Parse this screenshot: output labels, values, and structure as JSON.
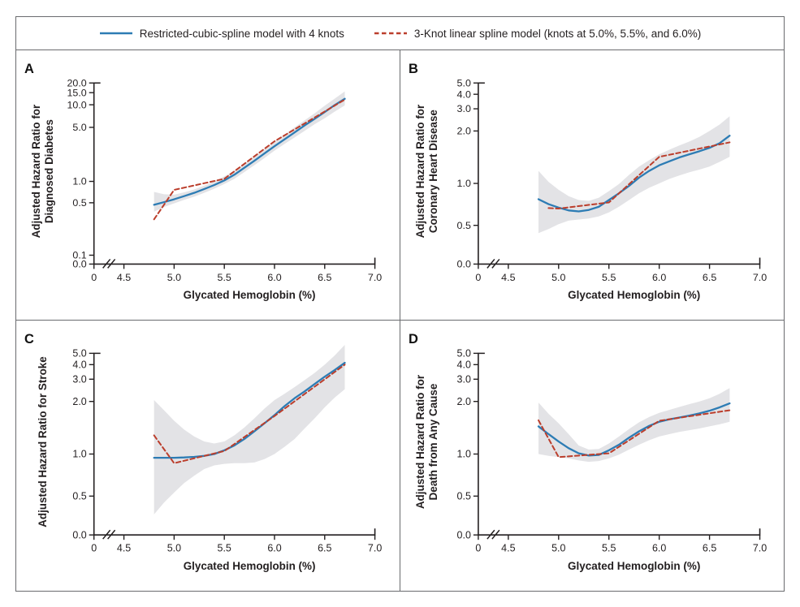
{
  "figure": {
    "legend": [
      {
        "label": "Restricted-cubic-spline model with 4 knots",
        "color": "#2d7cb4",
        "style": "solid"
      },
      {
        "label": "3-Knot linear spline model (knots at 5.0%, 5.5%, and 6.0%)",
        "color": "#bb3e2c",
        "style": "dashed"
      }
    ],
    "colors": {
      "curve_blue": "#2d7cb4",
      "curve_red": "#bb3e2c",
      "band_gray": "#e3e3e6",
      "axis_text": "#231f20",
      "frame_gray": "#6a6b6e"
    },
    "xlabel": "Glycated Hemoglobin (%)"
  },
  "chart_data": [
    {
      "panel": "A",
      "type": "line",
      "title": "",
      "xlabel": "Glycated Hemoglobin (%)",
      "ylabel": [
        "Adjusted Hazard Ratio for",
        "Diagnosed Diabetes"
      ],
      "x_axis": {
        "break_after_zero": true,
        "ticks": [
          {
            "label": "0",
            "value": 0
          },
          {
            "label": "4.5",
            "value": 4.5
          },
          {
            "label": "5.0",
            "value": 5.0
          },
          {
            "label": "5.5",
            "value": 5.5
          },
          {
            "label": "6.0",
            "value": 6.0
          },
          {
            "label": "6.5",
            "value": 6.5
          },
          {
            "label": "7.0",
            "value": 7.0
          }
        ]
      },
      "y_axis": {
        "scale": "log",
        "ticks": [
          {
            "label": "0.0",
            "value": 0
          },
          {
            "label": "0.1",
            "value": 0.1
          },
          {
            "label": "0.5",
            "value": 0.5
          },
          {
            "label": "1.0",
            "value": 1
          },
          {
            "label": "5.0",
            "value": 5
          },
          {
            "label": "10.0",
            "value": 10
          },
          {
            "label": "15.0",
            "value": 15
          },
          {
            "label": "20.0",
            "value": 20
          }
        ]
      },
      "series": [
        {
          "name": "Restricted-cubic-spline model with 4 knots",
          "x": [
            4.8,
            4.9,
            5.0,
            5.1,
            5.2,
            5.3,
            5.4,
            5.5,
            5.6,
            5.7,
            5.8,
            5.9,
            6.0,
            6.1,
            6.2,
            6.3,
            6.4,
            6.5,
            6.6,
            6.7
          ],
          "y": [
            0.47,
            0.51,
            0.56,
            0.62,
            0.69,
            0.78,
            0.89,
            1.03,
            1.22,
            1.5,
            1.85,
            2.3,
            2.85,
            3.5,
            4.3,
            5.3,
            6.5,
            8.0,
            9.9,
            12.2
          ]
        },
        {
          "name": "3-Knot linear spline model",
          "x": [
            4.8,
            5.0,
            5.5,
            6.0,
            6.7
          ],
          "y": [
            0.3,
            0.76,
            1.08,
            3.3,
            11.9
          ]
        }
      ],
      "band": {
        "x": [
          4.8,
          4.9,
          5.0,
          5.1,
          5.2,
          5.3,
          5.4,
          5.5,
          5.6,
          5.7,
          5.8,
          5.9,
          6.0,
          6.1,
          6.2,
          6.3,
          6.4,
          6.5,
          6.6,
          6.7
        ],
        "lo": [
          0.38,
          0.44,
          0.49,
          0.55,
          0.61,
          0.69,
          0.79,
          0.92,
          1.08,
          1.32,
          1.62,
          2.0,
          2.5,
          3.05,
          3.7,
          4.5,
          5.5,
          6.6,
          8.1,
          9.8
        ],
        "hi": [
          0.71,
          0.66,
          0.65,
          0.7,
          0.77,
          0.87,
          1.0,
          1.16,
          1.38,
          1.7,
          2.1,
          2.6,
          3.25,
          4.0,
          5.0,
          6.2,
          7.7,
          9.7,
          12.3,
          15.6
        ]
      }
    },
    {
      "panel": "B",
      "type": "line",
      "title": "",
      "xlabel": "Glycated Hemoglobin (%)",
      "ylabel": [
        "Adjusted Hazard Ratio for",
        "Coronary Heart Disease"
      ],
      "x_axis": {
        "break_after_zero": true,
        "ticks": [
          {
            "label": "0",
            "value": 0
          },
          {
            "label": "4.5",
            "value": 4.5
          },
          {
            "label": "5.0",
            "value": 5.0
          },
          {
            "label": "5.5",
            "value": 5.5
          },
          {
            "label": "6.0",
            "value": 6.0
          },
          {
            "label": "6.5",
            "value": 6.5
          },
          {
            "label": "7.0",
            "value": 7.0
          }
        ]
      },
      "y_axis": {
        "scale": "log",
        "ticks": [
          {
            "label": "0.0",
            "value": 0
          },
          {
            "label": "0.5",
            "value": 0.5
          },
          {
            "label": "1.0",
            "value": 1
          },
          {
            "label": "2.0",
            "value": 2
          },
          {
            "label": "3.0",
            "value": 3
          },
          {
            "label": "4.0",
            "value": 4
          },
          {
            "label": "5.0",
            "value": 5
          }
        ]
      },
      "series": [
        {
          "name": "Restricted-cubic-spline model with 4 knots",
          "x": [
            4.8,
            4.9,
            5.0,
            5.1,
            5.2,
            5.3,
            5.4,
            5.5,
            5.6,
            5.7,
            5.8,
            5.9,
            6.0,
            6.1,
            6.2,
            6.3,
            6.4,
            6.5,
            6.6,
            6.7
          ],
          "y": [
            0.77,
            0.71,
            0.67,
            0.64,
            0.63,
            0.645,
            0.68,
            0.76,
            0.85,
            0.96,
            1.08,
            1.18,
            1.27,
            1.34,
            1.41,
            1.47,
            1.53,
            1.6,
            1.7,
            1.88
          ]
        },
        {
          "name": "3-Knot linear spline model",
          "x": [
            4.9,
            5.0,
            5.5,
            6.0,
            6.7
          ],
          "y": [
            0.665,
            0.66,
            0.73,
            1.42,
            1.72
          ]
        }
      ],
      "band": {
        "x": [
          4.8,
          4.9,
          5.0,
          5.1,
          5.2,
          5.3,
          5.4,
          5.5,
          5.6,
          5.7,
          5.8,
          5.9,
          6.0,
          6.1,
          6.2,
          6.3,
          6.4,
          6.5,
          6.6,
          6.7
        ],
        "lo": [
          0.44,
          0.47,
          0.51,
          0.54,
          0.55,
          0.56,
          0.58,
          0.62,
          0.68,
          0.76,
          0.85,
          0.93,
          1.0,
          1.06,
          1.11,
          1.16,
          1.2,
          1.25,
          1.33,
          1.42
        ],
        "hi": [
          1.18,
          1.02,
          0.9,
          0.81,
          0.76,
          0.75,
          0.79,
          0.88,
          0.99,
          1.12,
          1.25,
          1.36,
          1.47,
          1.56,
          1.65,
          1.74,
          1.85,
          2.0,
          2.25,
          2.62
        ]
      }
    },
    {
      "panel": "C",
      "type": "line",
      "title": "",
      "xlabel": "Glycated Hemoglobin (%)",
      "ylabel": [
        "Adjusted Hazard Ratio for Stroke"
      ],
      "x_axis": {
        "break_after_zero": true,
        "ticks": [
          {
            "label": "0",
            "value": 0
          },
          {
            "label": "4.5",
            "value": 4.5
          },
          {
            "label": "5.0",
            "value": 5.0
          },
          {
            "label": "5.5",
            "value": 5.5
          },
          {
            "label": "6.0",
            "value": 6.0
          },
          {
            "label": "6.5",
            "value": 6.5
          },
          {
            "label": "7.0",
            "value": 7.0
          }
        ]
      },
      "y_axis": {
        "scale": "log",
        "ticks": [
          {
            "label": "0.0",
            "value": 0
          },
          {
            "label": "0.5",
            "value": 0.5
          },
          {
            "label": "1.0",
            "value": 1
          },
          {
            "label": "2.0",
            "value": 2
          },
          {
            "label": "3.0",
            "value": 3
          },
          {
            "label": "4.0",
            "value": 4
          },
          {
            "label": "5.0",
            "value": 5
          }
        ]
      },
      "series": [
        {
          "name": "Restricted-cubic-spline model with 4 knots",
          "x": [
            4.8,
            4.9,
            5.0,
            5.1,
            5.2,
            5.3,
            5.4,
            5.5,
            5.6,
            5.7,
            5.8,
            5.9,
            6.0,
            6.1,
            6.2,
            6.3,
            6.4,
            6.5,
            6.6,
            6.7
          ],
          "y": [
            0.94,
            0.94,
            0.94,
            0.945,
            0.955,
            0.97,
            1.0,
            1.05,
            1.12,
            1.22,
            1.35,
            1.5,
            1.67,
            1.88,
            2.12,
            2.4,
            2.75,
            3.15,
            3.6,
            4.15
          ]
        },
        {
          "name": "3-Knot linear spline model",
          "x": [
            4.8,
            5.0,
            5.5,
            6.0,
            6.7
          ],
          "y": [
            1.28,
            0.86,
            1.04,
            1.65,
            4.0
          ]
        }
      ],
      "band": {
        "x": [
          4.8,
          4.9,
          5.0,
          5.1,
          5.2,
          5.3,
          5.4,
          5.5,
          5.6,
          5.7,
          5.8,
          5.9,
          6.0,
          6.1,
          6.2,
          6.3,
          6.4,
          6.5,
          6.6,
          6.7
        ],
        "lo": [
          0.37,
          0.45,
          0.53,
          0.62,
          0.7,
          0.78,
          0.83,
          0.85,
          0.86,
          0.86,
          0.87,
          0.92,
          1.0,
          1.1,
          1.22,
          1.4,
          1.6,
          1.85,
          2.15,
          2.5
        ],
        "hi": [
          2.05,
          1.78,
          1.55,
          1.38,
          1.26,
          1.18,
          1.15,
          1.18,
          1.28,
          1.42,
          1.6,
          1.82,
          2.05,
          2.3,
          2.6,
          2.95,
          3.4,
          4.0,
          4.8,
          5.9
        ]
      }
    },
    {
      "panel": "D",
      "type": "line",
      "title": "",
      "xlabel": "Glycated Hemoglobin (%)",
      "ylabel": [
        "Adjusted Hazard Ratio for",
        "Death from Any Cause"
      ],
      "x_axis": {
        "break_after_zero": true,
        "ticks": [
          {
            "label": "0",
            "value": 0
          },
          {
            "label": "4.5",
            "value": 4.5
          },
          {
            "label": "5.0",
            "value": 5.0
          },
          {
            "label": "5.5",
            "value": 5.5
          },
          {
            "label": "6.0",
            "value": 6.0
          },
          {
            "label": "6.5",
            "value": 6.5
          },
          {
            "label": "7.0",
            "value": 7.0
          }
        ]
      },
      "y_axis": {
        "scale": "log",
        "ticks": [
          {
            "label": "0.0",
            "value": 0
          },
          {
            "label": "0.5",
            "value": 0.5
          },
          {
            "label": "1.0",
            "value": 1
          },
          {
            "label": "2.0",
            "value": 2
          },
          {
            "label": "3.0",
            "value": 3
          },
          {
            "label": "4.0",
            "value": 4
          },
          {
            "label": "5.0",
            "value": 5
          }
        ]
      },
      "series": [
        {
          "name": "Restricted-cubic-spline model with 4 knots",
          "x": [
            4.8,
            4.9,
            5.0,
            5.1,
            5.2,
            5.3,
            5.4,
            5.5,
            5.6,
            5.7,
            5.8,
            5.9,
            6.0,
            6.1,
            6.2,
            6.3,
            6.4,
            6.5,
            6.6,
            6.7
          ],
          "y": [
            1.44,
            1.3,
            1.18,
            1.08,
            1.01,
            0.975,
            0.985,
            1.05,
            1.13,
            1.24,
            1.35,
            1.45,
            1.53,
            1.58,
            1.62,
            1.66,
            1.71,
            1.77,
            1.85,
            1.95
          ]
        },
        {
          "name": "3-Knot linear spline model",
          "x": [
            4.8,
            5.0,
            5.5,
            6.0,
            6.7
          ],
          "y": [
            1.56,
            0.95,
            1.01,
            1.55,
            1.78
          ]
        }
      ],
      "band": {
        "x": [
          4.8,
          4.9,
          5.0,
          5.1,
          5.2,
          5.3,
          5.4,
          5.5,
          5.6,
          5.7,
          5.8,
          5.9,
          6.0,
          6.1,
          6.2,
          6.3,
          6.4,
          6.5,
          6.6,
          6.7
        ],
        "lo": [
          1.0,
          0.97,
          0.95,
          0.93,
          0.9,
          0.88,
          0.89,
          0.93,
          0.99,
          1.06,
          1.13,
          1.2,
          1.26,
          1.3,
          1.34,
          1.37,
          1.4,
          1.44,
          1.48,
          1.53
        ],
        "hi": [
          1.97,
          1.7,
          1.5,
          1.3,
          1.12,
          1.06,
          1.07,
          1.15,
          1.26,
          1.39,
          1.52,
          1.63,
          1.72,
          1.79,
          1.86,
          1.93,
          2.0,
          2.12,
          2.3,
          2.55
        ]
      }
    }
  ]
}
